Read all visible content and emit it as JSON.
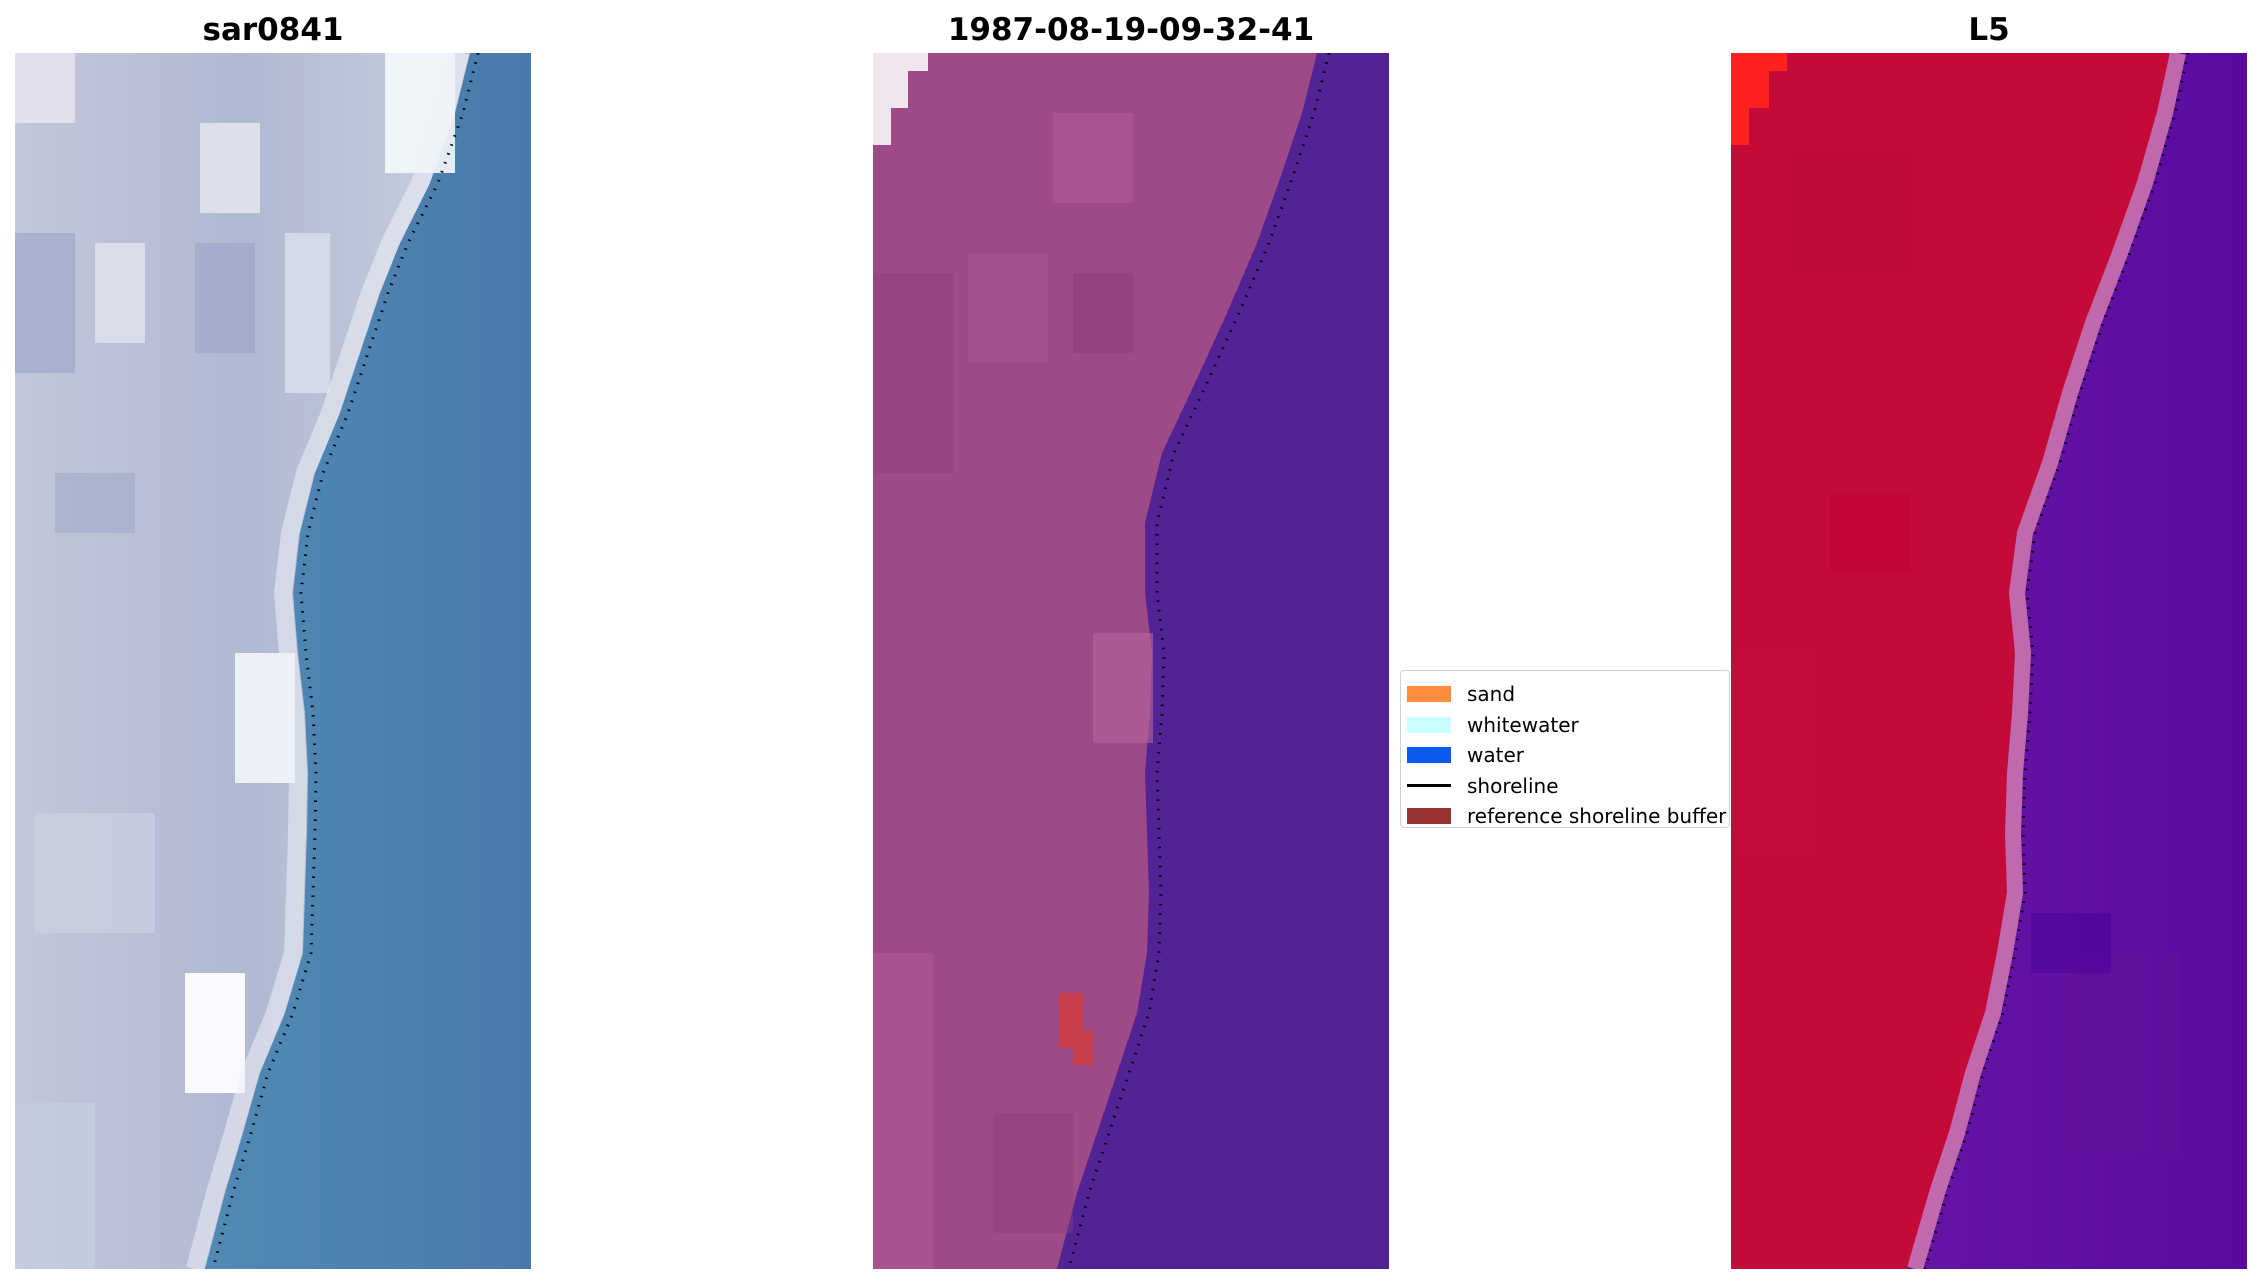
{
  "panels": [
    {
      "title": "sar0841"
    },
    {
      "title": "1987-08-19-09-32-41"
    },
    {
      "title": "L5"
    }
  ],
  "legend": {
    "items": [
      {
        "label": "sand",
        "color": "#ff8c3c",
        "kind": "patch"
      },
      {
        "label": "whitewater",
        "color": "#c8ffff",
        "kind": "patch"
      },
      {
        "label": "water",
        "color": "#0a5af0",
        "kind": "patch"
      },
      {
        "label": "shoreline",
        "color": "#000000",
        "kind": "line"
      },
      {
        "label": "reference shoreline buffer",
        "color": "#993333",
        "kind": "patch"
      }
    ]
  },
  "colors": {
    "rgb_land": "#b9c0d6",
    "rgb_water": "#4a86b4",
    "class_land": "#9e4a86",
    "class_water": "#512394",
    "class_patch": "#c8404a",
    "false_land": "#c30a38",
    "false_water": "#5e0fa0",
    "false_corner": "#ff2020"
  }
}
